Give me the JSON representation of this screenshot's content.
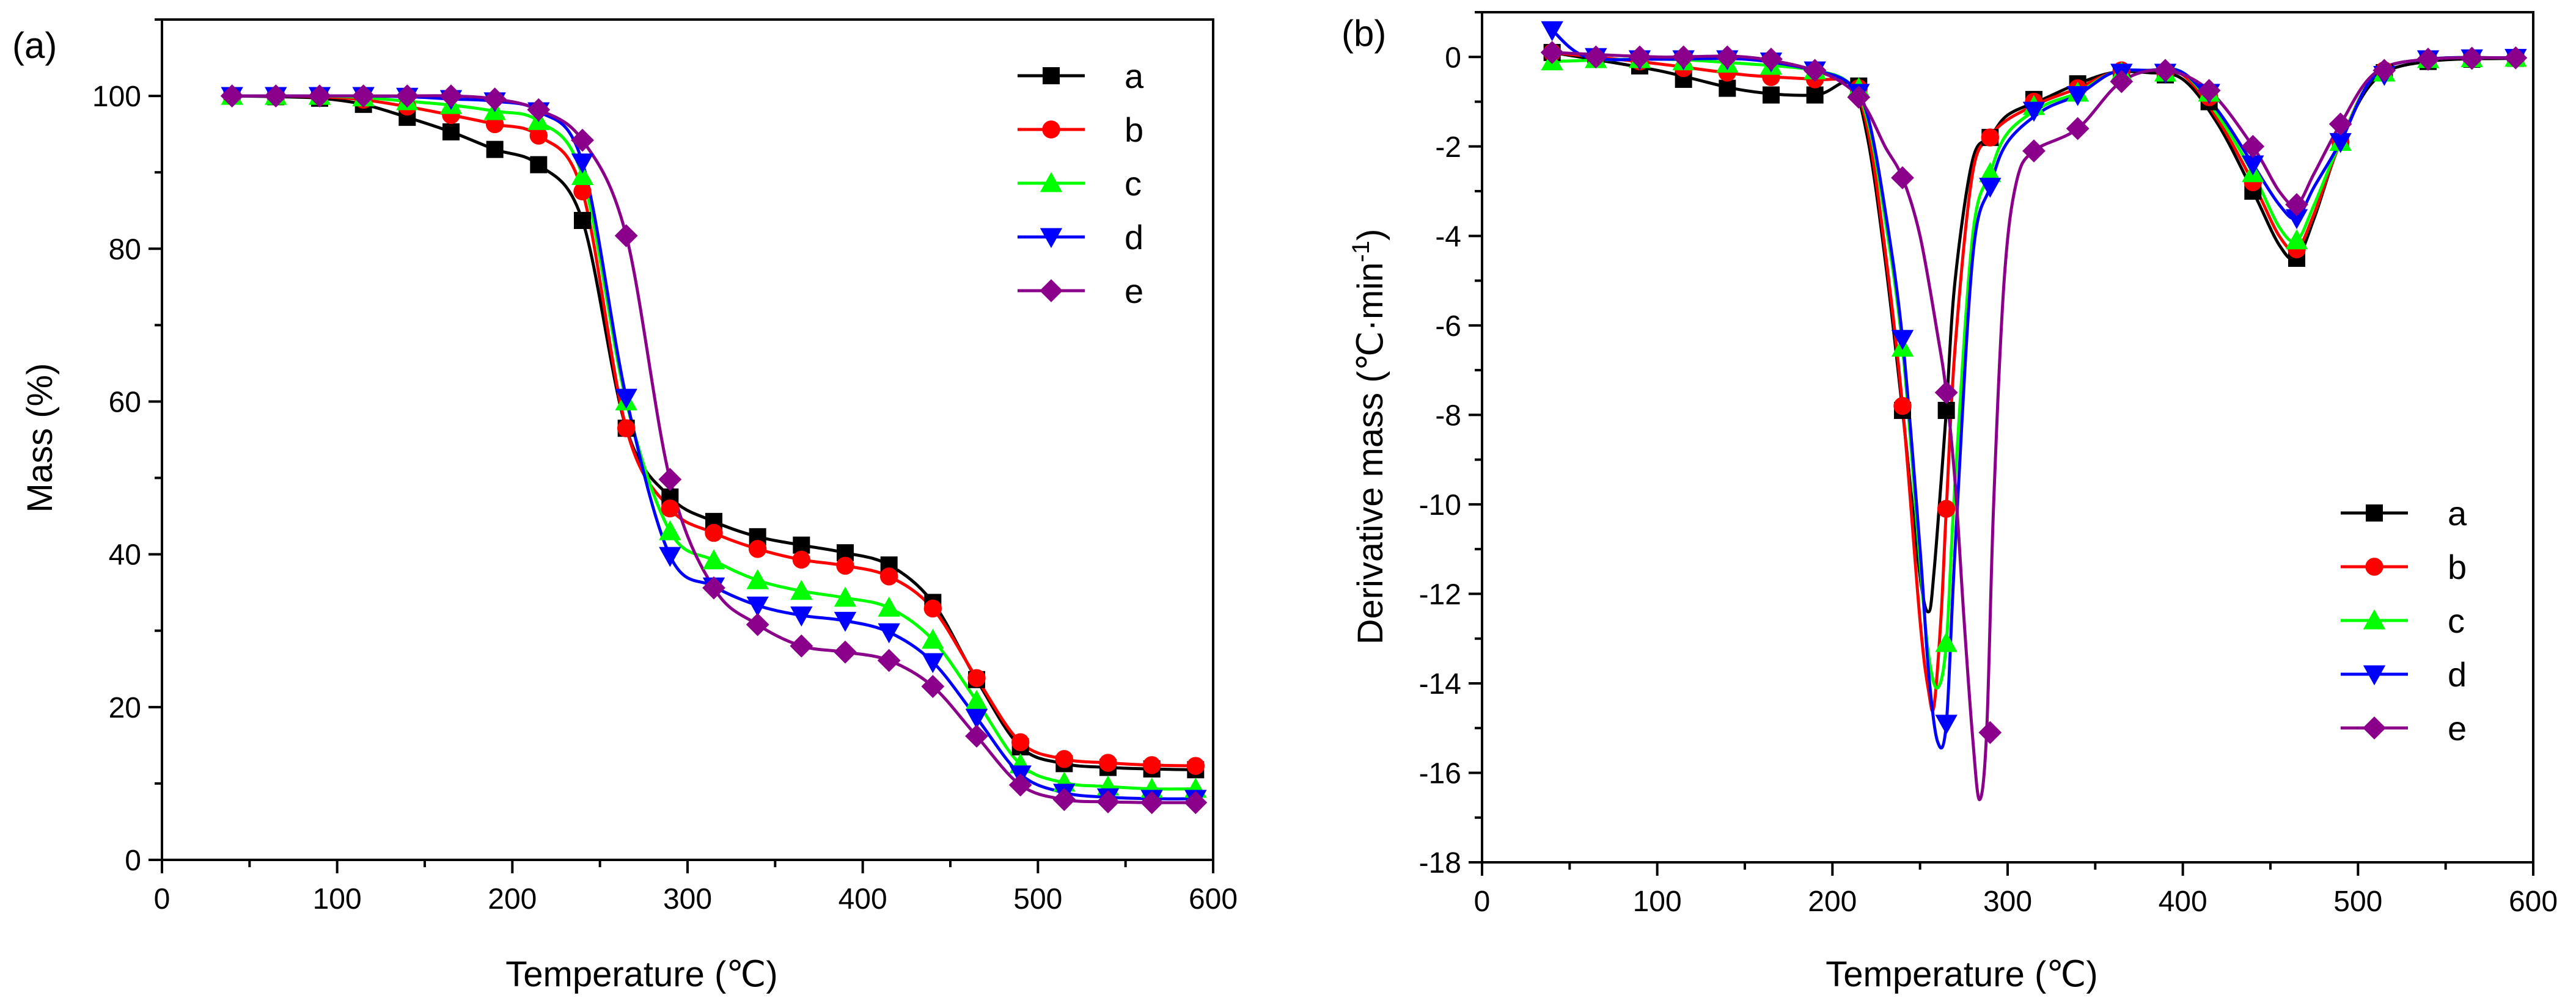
{
  "chart_data": [
    {
      "panel_label": "(a)",
      "type": "line",
      "xlabel": "Temperature (℃)",
      "ylabel": "Mass (%)",
      "xlim": [
        0,
        600
      ],
      "ylim": [
        0,
        110
      ],
      "xticks": [
        0,
        100,
        200,
        300,
        400,
        500,
        600
      ],
      "yticks": [
        0,
        20,
        40,
        60,
        80,
        100
      ],
      "xtick_labels": [
        "0",
        "100",
        "200",
        "300",
        "400",
        "500",
        "600"
      ],
      "ytick_labels": [
        "0",
        "20",
        "40",
        "60",
        "80",
        "100"
      ],
      "legend_position": "top-right",
      "series": [
        {
          "name": "a",
          "color": "#000000",
          "marker": "square",
          "x": [
            40,
            65,
            90,
            115,
            140,
            165,
            190,
            215,
            240,
            265,
            290,
            315,
            340,
            365,
            390,
            415,
            440,
            465,
            490,
            515,
            540,
            565,
            590
          ],
          "y": [
            100,
            99.9,
            99.7,
            98.9,
            97.2,
            95.3,
            93,
            91,
            83.7,
            56.5,
            47.5,
            44.3,
            42.3,
            41.2,
            40.2,
            38.6,
            33.7,
            23.6,
            14.8,
            12.6,
            12.1,
            11.9,
            11.8
          ]
        },
        {
          "name": "b",
          "color": "#ff0000",
          "marker": "circle",
          "x": [
            40,
            65,
            90,
            115,
            140,
            165,
            190,
            215,
            240,
            265,
            290,
            315,
            340,
            365,
            390,
            415,
            440,
            465,
            490,
            515,
            540,
            565,
            590
          ],
          "y": [
            100,
            100,
            99.9,
            99.5,
            98.6,
            97.5,
            96.3,
            94.8,
            87.5,
            56.5,
            46,
            42.8,
            40.7,
            39.3,
            38.5,
            37.1,
            32.9,
            23.8,
            15.4,
            13.2,
            12.7,
            12.4,
            12.3
          ]
        },
        {
          "name": "c",
          "color": "#00ff00",
          "marker": "triangle-up",
          "x": [
            40,
            65,
            90,
            115,
            140,
            165,
            190,
            215,
            240,
            265,
            290,
            315,
            340,
            365,
            390,
            415,
            440,
            465,
            490,
            515,
            540,
            565,
            590
          ],
          "y": [
            100,
            100,
            100,
            99.8,
            99.3,
            98.8,
            98,
            96.7,
            89.5,
            60,
            43,
            39.2,
            36.6,
            35.2,
            34.3,
            33,
            28.8,
            20.8,
            12.5,
            10.1,
            9.6,
            9.3,
            9.3
          ]
        },
        {
          "name": "d",
          "color": "#0000ff",
          "marker": "triangle-down",
          "x": [
            40,
            65,
            90,
            115,
            140,
            165,
            190,
            215,
            240,
            265,
            290,
            315,
            340,
            365,
            390,
            415,
            440,
            465,
            490,
            515,
            540,
            565,
            590
          ],
          "y": [
            100,
            100,
            100,
            100,
            99.9,
            99.6,
            99.3,
            98,
            91.3,
            60.5,
            39.8,
            35.8,
            33.3,
            32,
            31.3,
            29.8,
            25.9,
            18.6,
            11.2,
            8.8,
            8.2,
            8,
            8
          ]
        },
        {
          "name": "e",
          "color": "#8b008b",
          "marker": "diamond",
          "x": [
            40,
            65,
            90,
            115,
            140,
            165,
            190,
            215,
            240,
            265,
            290,
            315,
            340,
            365,
            390,
            415,
            440,
            465,
            490,
            515,
            540,
            565,
            590
          ],
          "y": [
            100,
            100,
            100,
            100,
            100,
            100,
            99.6,
            98.2,
            94.2,
            81.7,
            49.8,
            35.6,
            30.8,
            28,
            27.2,
            26.1,
            22.7,
            16.2,
            9.8,
            7.9,
            7.6,
            7.5,
            7.5
          ]
        }
      ]
    },
    {
      "panel_label": "(b)",
      "type": "line",
      "xlabel": "Temperature (℃)",
      "ylabel_main": "Derivative mass (℃·min",
      "ylabel_sup": "-1",
      "ylabel_close": ")",
      "xlim": [
        0,
        600
      ],
      "ylim": [
        -18,
        1
      ],
      "xticks": [
        0,
        100,
        200,
        300,
        400,
        500,
        600
      ],
      "yticks": [
        0,
        -2,
        -4,
        -6,
        -8,
        -10,
        -12,
        -14,
        -16,
        -18
      ],
      "xtick_labels": [
        "0",
        "100",
        "200",
        "300",
        "400",
        "500",
        "600"
      ],
      "ytick_labels": [
        "0",
        "-2",
        "-4",
        "-6",
        "-8",
        "-10",
        "-12",
        "-14",
        "-16",
        "-18"
      ],
      "legend_position": "bottom-right",
      "series": [
        {
          "name": "a",
          "color": "#000000",
          "marker": "square",
          "x": [
            40,
            65,
            90,
            115,
            140,
            165,
            190,
            215,
            240,
            265,
            290,
            315,
            340,
            365,
            390,
            415,
            440,
            465,
            490,
            515,
            540,
            565,
            590
          ],
          "y": [
            0.1,
            -0.05,
            -0.2,
            -0.5,
            -0.7,
            -0.85,
            -0.85,
            -0.65,
            -7.9,
            -7.9,
            -1.8,
            -0.95,
            -0.6,
            -0.35,
            -0.4,
            -1,
            -3,
            -4.5,
            -1.9,
            -0.35,
            -0.1,
            -0.05,
            -0.03
          ],
          "curve_x": [
            40,
            100,
            150,
            190,
            210,
            220,
            230,
            240,
            250,
            255,
            258,
            262,
            265,
            270,
            280,
            290,
            300,
            320,
            340,
            360,
            380,
            400,
            420,
            440,
            455,
            465,
            475,
            490,
            510,
            540,
            590
          ],
          "curve_y": [
            0.1,
            -0.3,
            -0.75,
            -0.85,
            -0.6,
            -1.8,
            -4.5,
            -7.9,
            -11.6,
            -12.4,
            -11.5,
            -9.5,
            -7.9,
            -5,
            -2.3,
            -1.8,
            -1.3,
            -0.95,
            -0.6,
            -0.35,
            -0.35,
            -0.5,
            -1.5,
            -3,
            -4.2,
            -4.5,
            -3.6,
            -1.9,
            -0.5,
            -0.1,
            -0.03
          ]
        },
        {
          "name": "b",
          "color": "#ff0000",
          "marker": "circle",
          "x": [
            40,
            65,
            90,
            115,
            140,
            165,
            190,
            215,
            240,
            265,
            290,
            315,
            340,
            365,
            390,
            415,
            440,
            465,
            490,
            515,
            540,
            565,
            590
          ],
          "y": [
            0.1,
            0,
            -0.1,
            -0.25,
            -0.35,
            -0.45,
            -0.5,
            -0.7,
            -7.8,
            -10.1,
            -1.8,
            -1,
            -0.7,
            -0.3,
            -0.35,
            -0.9,
            -2.8,
            -4.3,
            -1.9,
            -0.3,
            -0.05,
            -0.03,
            -0.02
          ],
          "curve_x": [
            40,
            100,
            150,
            190,
            210,
            220,
            230,
            240,
            250,
            255,
            258,
            262,
            265,
            270,
            280,
            290,
            300,
            320,
            340,
            360,
            380,
            400,
            420,
            440,
            455,
            465,
            475,
            490,
            510,
            540,
            590
          ],
          "curve_y": [
            0.1,
            -0.15,
            -0.4,
            -0.5,
            -0.6,
            -1.6,
            -4.3,
            -7.8,
            -12.6,
            -14.2,
            -14.5,
            -12.5,
            -10.1,
            -6.5,
            -2.6,
            -1.8,
            -1.4,
            -1,
            -0.7,
            -0.35,
            -0.3,
            -0.4,
            -1.4,
            -2.8,
            -4,
            -4.3,
            -3.5,
            -1.9,
            -0.4,
            -0.05,
            -0.02
          ]
        },
        {
          "name": "c",
          "color": "#00ff00",
          "marker": "triangle-up",
          "x": [
            40,
            65,
            90,
            115,
            140,
            165,
            190,
            215,
            240,
            265,
            290,
            315,
            340,
            365,
            390,
            415,
            440,
            465,
            490,
            515,
            540,
            565,
            590
          ],
          "y": [
            -0.1,
            -0.05,
            -0.05,
            -0.1,
            -0.15,
            -0.2,
            -0.3,
            -0.7,
            -6.5,
            -13.1,
            -2.6,
            -1.1,
            -0.8,
            -0.35,
            -0.35,
            -0.8,
            -2.6,
            -4.1,
            -1.9,
            -0.35,
            -0.05,
            -0.03,
            -0.02
          ],
          "curve_x": [
            40,
            100,
            150,
            190,
            210,
            220,
            230,
            240,
            250,
            255,
            260,
            265,
            270,
            280,
            290,
            300,
            320,
            340,
            360,
            380,
            400,
            420,
            440,
            455,
            465,
            475,
            490,
            510,
            540,
            590
          ],
          "curve_y": [
            -0.1,
            -0.05,
            -0.15,
            -0.3,
            -0.6,
            -1.4,
            -3.6,
            -6.5,
            -11.3,
            -13.4,
            -14.1,
            -13.1,
            -9.5,
            -4,
            -2.6,
            -1.7,
            -1.1,
            -0.8,
            -0.35,
            -0.3,
            -0.35,
            -1.3,
            -2.6,
            -3.8,
            -4.1,
            -3.3,
            -1.9,
            -0.4,
            -0.05,
            -0.02
          ]
        },
        {
          "name": "d",
          "color": "#0000ff",
          "marker": "triangle-down",
          "x": [
            40,
            65,
            90,
            115,
            140,
            165,
            190,
            215,
            240,
            265,
            290,
            315,
            340,
            365,
            390,
            415,
            440,
            465,
            490,
            515,
            540,
            565,
            590
          ],
          "y": [
            0.6,
            0,
            -0.05,
            -0.05,
            -0.05,
            -0.1,
            -0.3,
            -0.8,
            -6.3,
            -14.9,
            -2.9,
            -1.2,
            -0.85,
            -0.35,
            -0.35,
            -0.8,
            -2.4,
            -3.6,
            -1.9,
            -0.4,
            -0.05,
            -0.03,
            -0.02
          ],
          "curve_x": [
            40,
            60,
            100,
            150,
            190,
            210,
            220,
            230,
            240,
            250,
            255,
            260,
            265,
            270,
            280,
            290,
            300,
            320,
            340,
            360,
            380,
            400,
            420,
            440,
            455,
            465,
            475,
            490,
            510,
            540,
            590
          ],
          "curve_y": [
            0.6,
            0,
            -0.05,
            -0.05,
            -0.3,
            -0.6,
            -1.3,
            -3.4,
            -6.3,
            -11,
            -13.8,
            -15.3,
            -14.9,
            -11,
            -4.5,
            -2.9,
            -1.9,
            -1.2,
            -0.85,
            -0.35,
            -0.3,
            -0.35,
            -1.2,
            -2.4,
            -3.3,
            -3.6,
            -2.9,
            -1.9,
            -0.4,
            -0.05,
            -0.02
          ]
        },
        {
          "name": "e",
          "color": "#8b008b",
          "marker": "diamond",
          "x": [
            40,
            65,
            90,
            115,
            140,
            165,
            190,
            215,
            240,
            265,
            290,
            315,
            340,
            365,
            390,
            415,
            440,
            465,
            490,
            515,
            540,
            565,
            590
          ],
          "y": [
            0.1,
            0,
            0,
            0,
            0,
            -0.05,
            -0.3,
            -0.9,
            -2.7,
            -7.5,
            -15.1,
            -2.1,
            -1.6,
            -0.55,
            -0.3,
            -0.75,
            -2,
            -3.3,
            -1.5,
            -0.3,
            -0.05,
            -0.03,
            -0.02
          ],
          "curve_x": [
            40,
            100,
            150,
            190,
            210,
            220,
            230,
            240,
            250,
            260,
            265,
            270,
            275,
            280,
            284,
            288,
            292,
            298,
            305,
            315,
            340,
            365,
            390,
            415,
            440,
            455,
            465,
            475,
            490,
            510,
            540,
            590
          ],
          "curve_y": [
            0.1,
            0,
            0,
            -0.3,
            -0.7,
            -1.2,
            -2,
            -2.7,
            -4,
            -6.2,
            -7.5,
            -9.5,
            -12.5,
            -15.2,
            -16.6,
            -15.1,
            -10,
            -5,
            -2.8,
            -2.1,
            -1.6,
            -0.55,
            -0.3,
            -0.75,
            -2,
            -3,
            -3.3,
            -2.6,
            -1.5,
            -0.35,
            -0.05,
            -0.02
          ]
        }
      ]
    }
  ]
}
